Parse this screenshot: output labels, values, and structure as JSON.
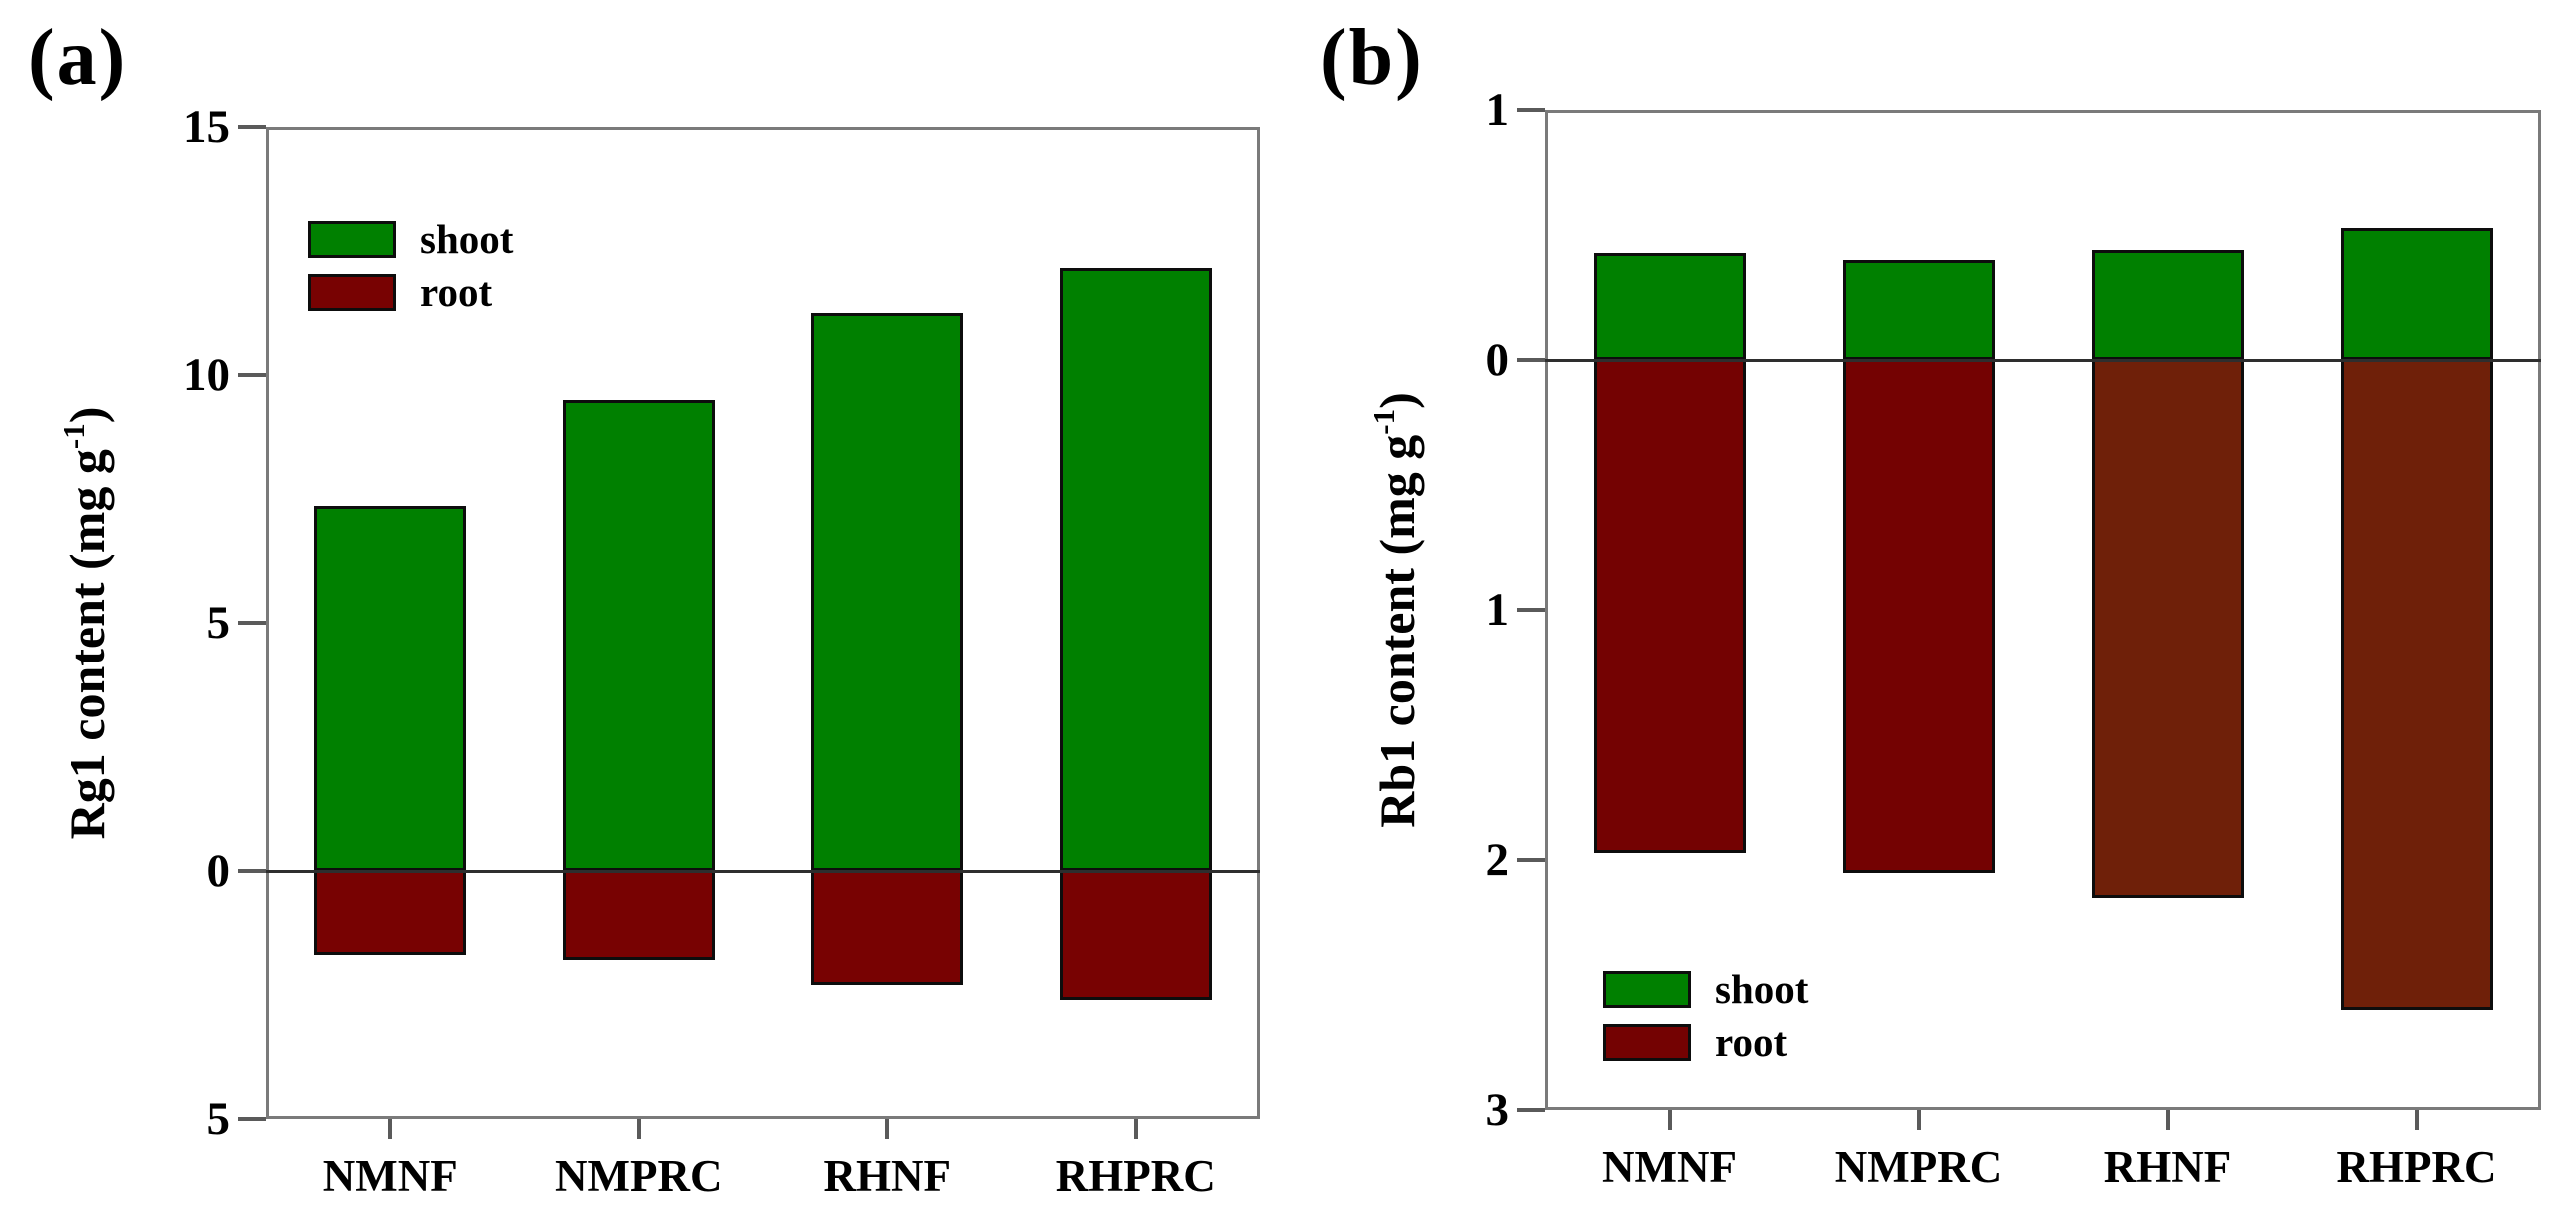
{
  "figure": {
    "background": "#ffffff",
    "frame_color": "#7a7a7a",
    "zero_line_color": "#2e2e2e",
    "text_color": "#000000",
    "shoot_color": "#008000"
  },
  "chart_data": [
    {
      "type": "bar",
      "panel_label": "(a)",
      "ylabel": "Rg1 content (mg g-1)",
      "ylabel_parts": {
        "pre": "Rg1 content (mg g",
        "sup": "-1",
        "post": ")"
      },
      "xlabel": "",
      "categories": [
        "NMNF",
        "NMPRC",
        "RHNF",
        "RHPRC"
      ],
      "series": [
        {
          "name": "shoot",
          "values": [
            7.35,
            9.5,
            11.25,
            12.15
          ],
          "color": "#008000",
          "bar_colors": [
            "#008000",
            "#008000",
            "#008000",
            "#008000"
          ]
        },
        {
          "name": "root",
          "values": [
            -1.7,
            -1.8,
            -2.3,
            -2.6
          ],
          "color": "#780202",
          "bar_colors": [
            "#780202",
            "#780202",
            "#780202",
            "#780202"
          ]
        }
      ],
      "ylim": [
        -5,
        15
      ],
      "yticks": [
        {
          "label": "15",
          "value": 15
        },
        {
          "label": "10",
          "value": 10
        },
        {
          "label": "5",
          "value": 5
        },
        {
          "label": "0",
          "value": 0
        },
        {
          "label": "5",
          "value": -5
        }
      ],
      "grid": false,
      "legend": {
        "position": "top-left-inside",
        "items": [
          {
            "label": "shoot",
            "color": "#008000"
          },
          {
            "label": "root",
            "color": "#780202"
          }
        ]
      }
    },
    {
      "type": "bar",
      "panel_label": "(b)",
      "ylabel": "Rb1 content (mg g-1)",
      "ylabel_parts": {
        "pre": "Rb1 content (mg g",
        "sup": "-1",
        "post": ")"
      },
      "xlabel": "",
      "categories": [
        "NMNF",
        "NMPRC",
        "RHNF",
        "RHPRC"
      ],
      "series": [
        {
          "name": "shoot",
          "values": [
            0.43,
            0.4,
            0.44,
            0.53
          ],
          "color": "#008000",
          "bar_colors": [
            "#008000",
            "#008000",
            "#008000",
            "#008000"
          ]
        },
        {
          "name": "root",
          "values": [
            -1.97,
            -2.05,
            -2.15,
            -2.6
          ],
          "color": "#740202",
          "bar_colors": [
            "#740202",
            "#740202",
            "#6f2009",
            "#6f2009"
          ]
        }
      ],
      "ylim": [
        -3,
        1
      ],
      "yticks": [
        {
          "label": "1",
          "value": 1
        },
        {
          "label": "0",
          "value": 0
        },
        {
          "label": "1",
          "value": -1
        },
        {
          "label": "2",
          "value": -2
        },
        {
          "label": "3",
          "value": -3
        }
      ],
      "grid": false,
      "legend": {
        "position": "bottom-left-inside",
        "items": [
          {
            "label": "shoot",
            "color": "#008000"
          },
          {
            "label": "root",
            "color": "#740202"
          }
        ]
      }
    }
  ]
}
